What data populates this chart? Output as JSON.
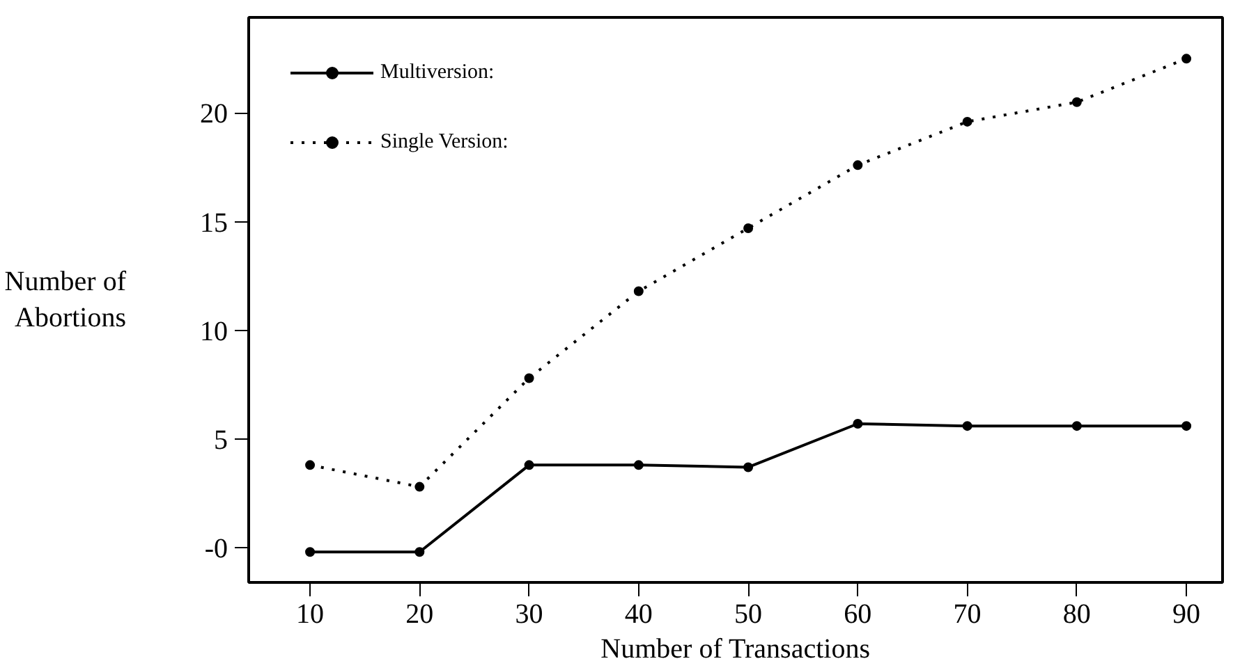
{
  "chart_data": {
    "type": "line",
    "xlabel": "Number of Transactions",
    "ylabel": "Number of Abortions",
    "x": [
      10,
      20,
      30,
      40,
      50,
      60,
      70,
      80,
      90
    ],
    "series": [
      {
        "name": "Multiversion:",
        "color": "#000000",
        "line_style": "solid",
        "values": [
          -0.2,
          -0.2,
          3.8,
          3.8,
          3.7,
          5.7,
          5.6,
          5.6,
          5.6
        ]
      },
      {
        "name": "Single Version:",
        "color": "#000000",
        "line_style": "dotted",
        "values": [
          3.8,
          2.8,
          7.8,
          11.8,
          14.7,
          17.6,
          19.6,
          20.5,
          22.5
        ]
      }
    ],
    "xlim": [
      4.4,
      93.3
    ],
    "ylim": [
      -1.6,
      24.4
    ],
    "xticks": [
      10,
      20,
      30,
      40,
      50,
      60,
      70,
      80,
      90
    ],
    "yticks": [
      {
        "value": 0,
        "label": "-0"
      },
      5,
      10,
      15,
      20
    ],
    "marker": "circle",
    "grid": false,
    "legend": "top left"
  }
}
